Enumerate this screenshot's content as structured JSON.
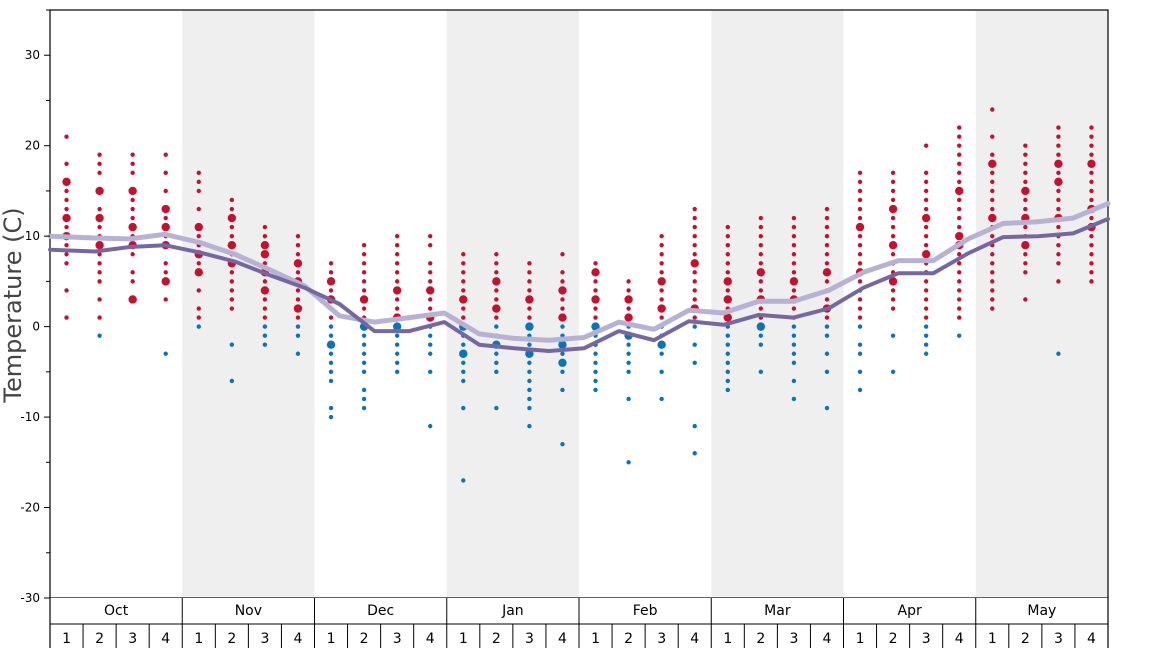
{
  "colors": {
    "warm": "#c8102e",
    "cold": "#0a74b8",
    "mean_light": "#b7b2d4",
    "mean_dark": "#7567a4",
    "band": "#efefef"
  },
  "chart_data": {
    "type": "scatter",
    "title": "",
    "ylabel": "Temperature (C)",
    "ylim": [
      -30,
      35
    ],
    "yticks": [
      "30",
      "20",
      "10",
      "0",
      "-10",
      "-20",
      "-30"
    ],
    "months": [
      "Oct",
      "Nov",
      "Dec",
      "Jan",
      "Feb",
      "Mar",
      "Apr",
      "May"
    ],
    "week_labels": [
      "1",
      "2",
      "3",
      "4"
    ],
    "series": [
      {
        "values": [
          10.0,
          9.8,
          9.7,
          10.2,
          9.3,
          8.0,
          6.3,
          4.5,
          1.2,
          0.5,
          1.0,
          1.5,
          -0.8,
          -1.3,
          -1.5,
          -1.2,
          0.5,
          -0.3,
          1.8,
          1.5,
          2.8,
          2.8,
          4.0,
          6.0,
          7.3,
          7.3,
          9.7,
          11.4,
          11.6,
          12.0,
          13.6
        ],
        "x": [
          0.0,
          0.9,
          1.6,
          2.3,
          3.0,
          3.7,
          4.4,
          5.1,
          5.8,
          6.5,
          7.2,
          7.9,
          8.6,
          9.3,
          10.0,
          10.7,
          11.4,
          12.1,
          12.8,
          13.5,
          14.2,
          14.9,
          15.6,
          16.3,
          17.0,
          17.7,
          18.4,
          19.1,
          19.8,
          20.5,
          21.2
        ]
      },
      {
        "values": [
          8.5,
          8.3,
          8.8,
          9.0,
          8.2,
          7.2,
          5.7,
          4.3,
          2.5,
          -0.5,
          -0.5,
          0.5,
          -2.0,
          -2.4,
          -2.7,
          -2.4,
          -0.5,
          -1.5,
          0.6,
          0.2,
          1.3,
          1.0,
          2.0,
          4.3,
          5.9,
          5.9,
          8.1,
          9.9,
          10.0,
          10.3,
          11.9
        ],
        "x": [
          0.0,
          0.9,
          1.6,
          2.3,
          3.0,
          3.7,
          4.4,
          5.1,
          5.8,
          6.5,
          7.2,
          7.9,
          8.6,
          9.3,
          10.0,
          10.7,
          11.4,
          12.1,
          12.8,
          13.5,
          14.2,
          14.9,
          15.6,
          16.3,
          17.0,
          17.7,
          18.4,
          19.1,
          19.8,
          20.5,
          21.2
        ]
      }
    ],
    "dots": [
      {
        "week": 1,
        "temps": [
          21,
          18,
          16,
          15,
          14,
          13,
          12,
          11,
          10,
          9,
          8,
          7,
          4,
          1
        ],
        "big": [
          16,
          12,
          10
        ]
      },
      {
        "week": 2,
        "temps": [
          19,
          18,
          17,
          15,
          13,
          12,
          11,
          10,
          9,
          8,
          7,
          6,
          5,
          3,
          1,
          -1
        ],
        "big": [
          15,
          12,
          9
        ]
      },
      {
        "week": 3,
        "temps": [
          19,
          18,
          17,
          15,
          14,
          13,
          12,
          11,
          10,
          9,
          8,
          6,
          5,
          3
        ],
        "big": [
          15,
          11,
          9,
          3
        ]
      },
      {
        "week": 4,
        "temps": [
          19,
          17,
          15,
          13,
          12,
          11,
          10,
          9,
          7,
          6,
          5,
          3,
          -3
        ],
        "big": [
          13,
          11,
          9,
          5
        ]
      },
      {
        "week": 5,
        "temps": [
          17,
          16,
          15,
          13,
          11,
          10,
          9,
          8,
          7,
          6,
          4,
          2,
          1,
          0
        ],
        "big": [
          11,
          8,
          6
        ]
      },
      {
        "week": 6,
        "temps": [
          14,
          13,
          12,
          11,
          10,
          9,
          8,
          7,
          6,
          5,
          4,
          3,
          2,
          -2,
          -6
        ],
        "big": [
          12,
          9,
          7
        ]
      },
      {
        "week": 7,
        "temps": [
          11,
          10,
          9,
          8,
          7,
          6,
          5,
          4,
          3,
          2,
          1,
          0,
          -1,
          -2
        ],
        "big": [
          9,
          8,
          6,
          4
        ]
      },
      {
        "week": 8,
        "temps": [
          10,
          9,
          8,
          7,
          6,
          5,
          4,
          3,
          2,
          1,
          0,
          -1,
          -3
        ],
        "big": [
          7,
          5,
          2
        ]
      },
      {
        "week": 9,
        "temps": [
          7,
          6,
          5,
          4,
          3,
          2,
          1,
          0,
          -1,
          -2,
          -3,
          -4,
          -5,
          -6,
          -9,
          -10
        ],
        "big": [
          5,
          3,
          -2
        ]
      },
      {
        "week": 10,
        "temps": [
          9,
          8,
          7,
          6,
          5,
          4,
          3,
          2,
          1,
          0,
          -1,
          -2,
          -3,
          -4,
          -5,
          -7,
          -8,
          -9
        ],
        "big": [
          3,
          0
        ]
      },
      {
        "week": 11,
        "temps": [
          10,
          9,
          8,
          7,
          6,
          5,
          4,
          3,
          2,
          1,
          0,
          -1,
          -2,
          -3,
          -4,
          -5
        ],
        "big": [
          4,
          1,
          0
        ]
      },
      {
        "week": 12,
        "temps": [
          10,
          9,
          7,
          6,
          5,
          4,
          3,
          2,
          1,
          0,
          -1,
          -2,
          -3,
          -5,
          -11
        ],
        "big": [
          4,
          1
        ]
      },
      {
        "week": 13,
        "temps": [
          8,
          7,
          6,
          5,
          4,
          3,
          2,
          1,
          0,
          -1,
          -2,
          -3,
          -4,
          -5,
          -6,
          -9,
          -17
        ],
        "big": [
          3,
          0,
          -3
        ]
      },
      {
        "week": 14,
        "temps": [
          8,
          7,
          6,
          5,
          4,
          3,
          2,
          1,
          0,
          -1,
          -2,
          -3,
          -4,
          -5,
          -9
        ],
        "big": [
          5,
          2,
          -2
        ]
      },
      {
        "week": 15,
        "temps": [
          7,
          6,
          5,
          4,
          3,
          2,
          1,
          0,
          -1,
          -2,
          -3,
          -4,
          -5,
          -6,
          -7,
          -8,
          -9,
          -11
        ],
        "big": [
          3,
          0,
          -3
        ]
      },
      {
        "week": 16,
        "temps": [
          8,
          6,
          5,
          4,
          3,
          2,
          1,
          0,
          -1,
          -2,
          -3,
          -4,
          -5,
          -7,
          -13
        ],
        "big": [
          4,
          1,
          -2,
          -4
        ]
      },
      {
        "week": 17,
        "temps": [
          7,
          6,
          5,
          4,
          3,
          2,
          1,
          0,
          -1,
          -2,
          -3,
          -4,
          -5,
          -6,
          -7
        ],
        "big": [
          6,
          3,
          0
        ]
      },
      {
        "week": 18,
        "temps": [
          5,
          4,
          3,
          2,
          1,
          0,
          -1,
          -2,
          -3,
          -4,
          -5,
          -8,
          -15
        ],
        "big": [
          3,
          1,
          -1
        ]
      },
      {
        "week": 19,
        "temps": [
          10,
          9,
          8,
          7,
          6,
          5,
          4,
          3,
          2,
          1,
          0,
          -1,
          -2,
          -3,
          -5,
          -8
        ],
        "big": [
          5,
          2,
          -2
        ]
      },
      {
        "week": 20,
        "temps": [
          13,
          12,
          11,
          10,
          9,
          8,
          7,
          6,
          5,
          4,
          3,
          2,
          1,
          0,
          -2,
          -4,
          -11,
          -14
        ],
        "big": [
          7,
          2
        ]
      },
      {
        "week": 21,
        "temps": [
          11,
          10,
          9,
          8,
          7,
          6,
          5,
          4,
          3,
          2,
          1,
          0,
          -1,
          -2,
          -3,
          -4,
          -5,
          -6,
          -7
        ],
        "big": [
          5,
          3,
          1
        ]
      },
      {
        "week": 22,
        "temps": [
          12,
          11,
          10,
          9,
          8,
          7,
          6,
          5,
          4,
          3,
          2,
          1,
          0,
          -1,
          -2,
          -5
        ],
        "big": [
          6,
          3,
          0
        ]
      },
      {
        "week": 23,
        "temps": [
          12,
          11,
          10,
          9,
          8,
          7,
          6,
          5,
          4,
          3,
          2,
          1,
          0,
          -1,
          -2,
          -3,
          -4,
          -6,
          -8
        ],
        "big": [
          5,
          3
        ]
      },
      {
        "week": 24,
        "temps": [
          13,
          12,
          11,
          10,
          9,
          8,
          7,
          6,
          5,
          4,
          3,
          2,
          1,
          0,
          -1,
          -3,
          -5,
          -9
        ],
        "big": [
          6,
          2
        ]
      },
      {
        "week": 25,
        "temps": [
          17,
          16,
          15,
          14,
          13,
          12,
          11,
          10,
          9,
          8,
          7,
          6,
          5,
          4,
          3,
          2,
          1,
          0,
          -2,
          -3,
          -5,
          -7
        ],
        "big": [
          11,
          6
        ]
      },
      {
        "week": 26,
        "temps": [
          17,
          16,
          15,
          14,
          13,
          12,
          11,
          10,
          9,
          8,
          7,
          6,
          5,
          4,
          3,
          2,
          -1,
          -5
        ],
        "big": [
          13,
          9,
          5
        ]
      },
      {
        "week": 27,
        "temps": [
          20,
          17,
          16,
          15,
          14,
          13,
          12,
          11,
          10,
          9,
          8,
          7,
          6,
          5,
          4,
          3,
          2,
          1,
          0,
          -1,
          -2,
          -3
        ],
        "big": [
          12,
          8
        ]
      },
      {
        "week": 28,
        "temps": [
          22,
          21,
          20,
          19,
          18,
          17,
          16,
          15,
          14,
          13,
          12,
          11,
          10,
          9,
          8,
          7,
          6,
          5,
          4,
          3,
          2,
          1,
          -1
        ],
        "big": [
          15,
          10,
          9
        ]
      },
      {
        "week": 29,
        "temps": [
          24,
          21,
          19,
          18,
          17,
          16,
          15,
          14,
          13,
          12,
          11,
          10,
          9,
          8,
          7,
          6,
          5,
          4,
          3,
          2
        ],
        "big": [
          18,
          12
        ]
      },
      {
        "week": 30,
        "temps": [
          20,
          19,
          18,
          17,
          16,
          15,
          14,
          13,
          12,
          11,
          10,
          9,
          8,
          7,
          6,
          3
        ],
        "big": [
          15,
          12,
          9
        ]
      },
      {
        "week": 31,
        "temps": [
          22,
          21,
          20,
          19,
          18,
          17,
          16,
          15,
          14,
          13,
          12,
          11,
          10,
          9,
          8,
          7,
          5,
          -3
        ],
        "big": [
          18,
          16,
          12
        ]
      },
      {
        "week": 32,
        "temps": [
          22,
          21,
          20,
          19,
          18,
          17,
          16,
          15,
          14,
          13,
          12,
          11,
          10,
          9,
          8,
          7,
          6,
          5
        ],
        "big": [
          18,
          13,
          11
        ]
      }
    ]
  }
}
